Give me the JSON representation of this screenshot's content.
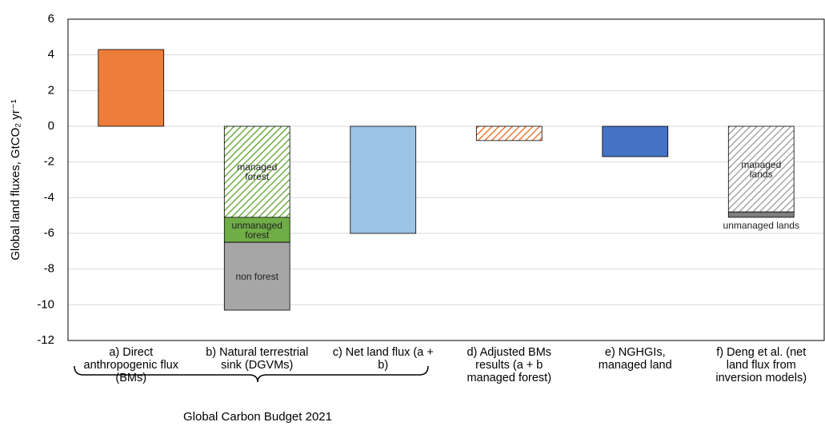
{
  "chart_data": {
    "type": "stacked_bar",
    "ylabel": "Global land fluxes, GtCO₂ yr⁻¹",
    "ylim": [
      -12,
      6
    ],
    "yticks": [
      -12,
      -10,
      -8,
      -6,
      -4,
      -2,
      0,
      2,
      4,
      6
    ],
    "grid": true,
    "bars": [
      {
        "category": "a) Direct anthropogenic flux (BMs)",
        "segments": [
          {
            "value": 4.3,
            "color": "#ED7D3A",
            "hatch": false
          }
        ]
      },
      {
        "category": "b) Natural terrestrial sink (DGVMs)",
        "segments": [
          {
            "label": "managed forest",
            "value": -5.1,
            "color": "#70AD47",
            "hatch": true
          },
          {
            "label": "unmanaged forest",
            "value": -1.4,
            "color": "#70AD47",
            "hatch": false
          },
          {
            "label": "non forest",
            "value": -3.8,
            "color": "#A6A6A6",
            "hatch": false
          }
        ]
      },
      {
        "category": "c) Net land flux (a + b)",
        "segments": [
          {
            "value": -6.0,
            "color": "#9DC3E6",
            "hatch": false
          }
        ]
      },
      {
        "category": "d) Adjusted BMs results (a + b managed forest)",
        "segments": [
          {
            "value": -0.8,
            "color": "#ED7D3A",
            "hatch": true
          }
        ]
      },
      {
        "category": "e) NGHGIs, managed land",
        "segments": [
          {
            "value": -1.7,
            "color": "#4472C4",
            "hatch": false
          }
        ]
      },
      {
        "category": "f) Deng et al. (net land flux from inversion models)",
        "segments": [
          {
            "label": "managed lands",
            "value": -4.8,
            "color": "#A6A6A6",
            "hatch": true
          },
          {
            "label": "unmanaged lands",
            "value": -0.3,
            "color": "#7F7F7F",
            "hatch": false
          }
        ]
      }
    ],
    "bracket_label": "Global Carbon Budget 2021"
  }
}
